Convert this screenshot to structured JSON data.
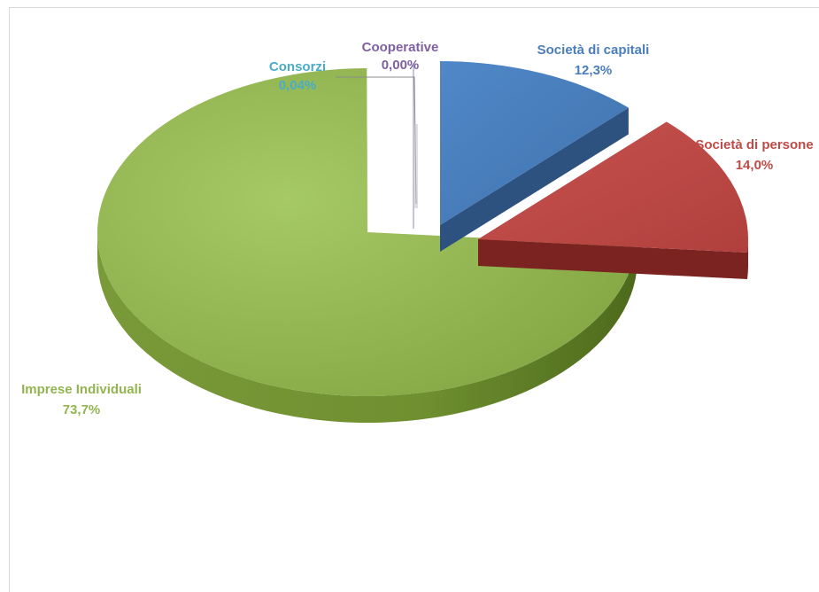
{
  "chart_data": {
    "type": "pie",
    "title": "",
    "slices": [
      {
        "name": "Società di capitali",
        "value": 12.3,
        "label": "12,3%",
        "color": "#4a7ebb",
        "side": "#2d5280"
      },
      {
        "name": "Società di persone",
        "value": 14.0,
        "label": "14,0%",
        "color": "#be4b48",
        "side": "#7a2320"
      },
      {
        "name": "Imprese Individuali",
        "value": 73.7,
        "label": "73,7%",
        "color": "#93b550",
        "side": "#5c7a25"
      },
      {
        "name": "Consorzi",
        "value": 0.04,
        "label": "0,04%",
        "color": "#4bacc6",
        "side": "#2e7a8c"
      },
      {
        "name": "Cooperative",
        "value": 0.0,
        "label": "0,00%",
        "color": "#7f5fa0",
        "side": "#5a3f78"
      }
    ],
    "legend": "none",
    "three_d": true,
    "exploded": true
  }
}
